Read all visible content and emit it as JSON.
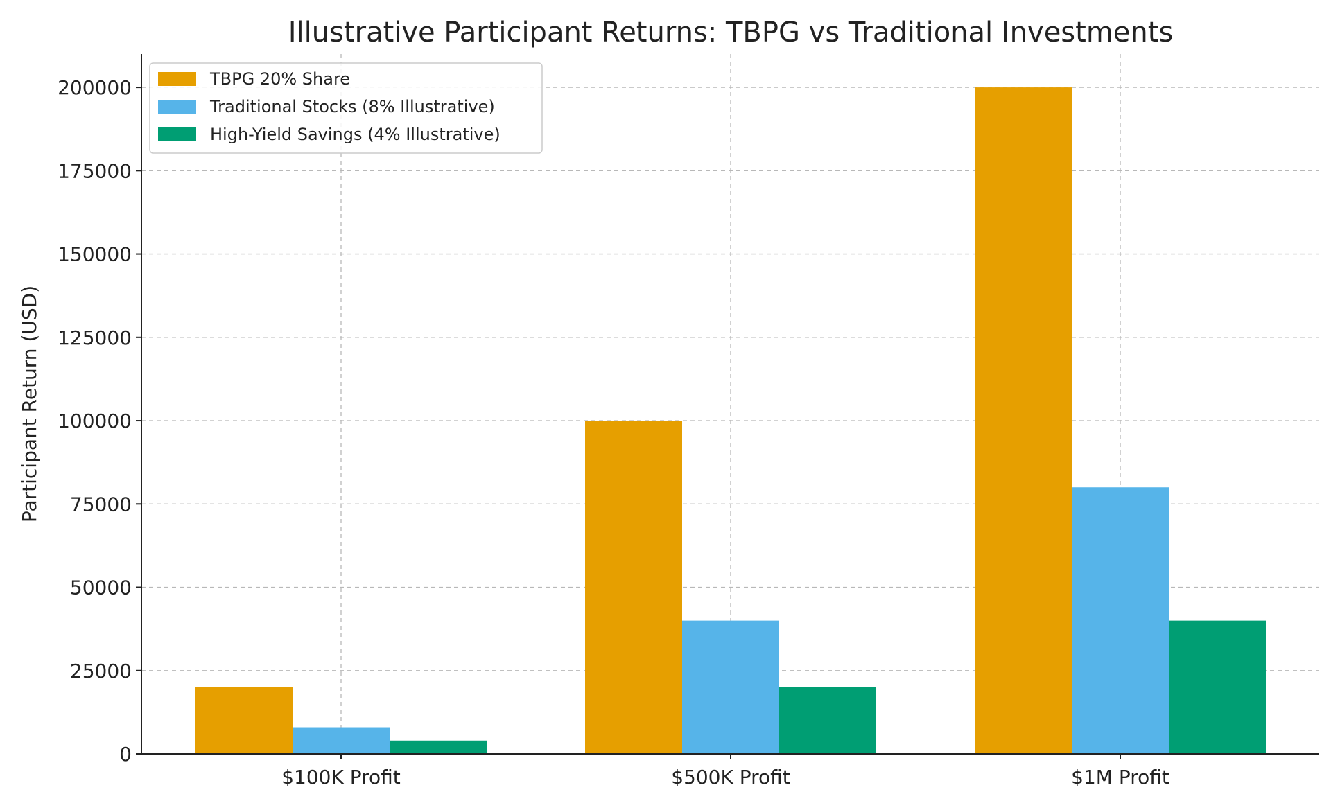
{
  "chart_data": {
    "type": "bar",
    "title": "Illustrative Participant Returns: TBPG vs Traditional Investments",
    "xlabel": "",
    "ylabel": "Participant Return (USD)",
    "categories": [
      "$100K Profit",
      "$500K Profit",
      "$1M Profit"
    ],
    "series": [
      {
        "name": "TBPG 20% Share",
        "values": [
          20000,
          100000,
          200000
        ],
        "color": "#E69F00"
      },
      {
        "name": "Traditional Stocks (8% Illustrative)",
        "values": [
          8000,
          40000,
          80000
        ],
        "color": "#56B4E9"
      },
      {
        "name": "High-Yield Savings (4% Illustrative)",
        "values": [
          4000,
          20000,
          40000
        ],
        "color": "#009E73"
      }
    ],
    "ylim": [
      0,
      210000
    ],
    "yticks": [
      0,
      25000,
      50000,
      75000,
      100000,
      125000,
      150000,
      175000,
      200000
    ],
    "ytick_labels": [
      "0",
      "25000",
      "50000",
      "75000",
      "100000",
      "125000",
      "150000",
      "175000",
      "200000"
    ],
    "grid": true,
    "legend_position": "top-left"
  }
}
